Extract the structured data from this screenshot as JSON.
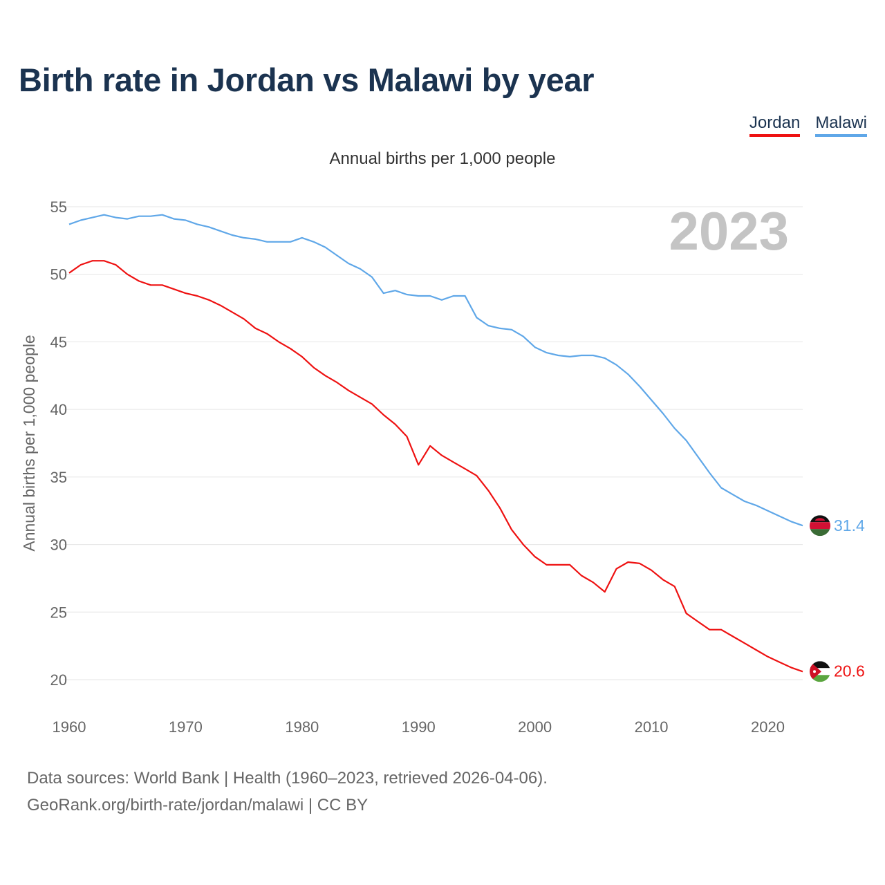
{
  "page": {
    "title": "Birth rate in Jordan vs Malawi by year",
    "subtitle": "Annual births per 1,000 people",
    "footer_line1": "Data sources: World Bank | Health (1960–2023, retrieved 2026-04-06).",
    "footer_line2": "GeoRank.org/birth-rate/jordan/malawi | CC BY"
  },
  "legend": {
    "jordan": "Jordan",
    "malawi": "Malawi"
  },
  "colors": {
    "jordan": "#ee1111",
    "malawi": "#5fa7e8",
    "grid": "#e6e6e6",
    "title": "#1b3350"
  },
  "chart_data": {
    "type": "line",
    "title": "Birth rate in Jordan vs Malawi by year",
    "subtitle": "Annual births per 1,000 people",
    "xlabel": "",
    "ylabel": "Annual births per 1,000 people",
    "year_label": "2023",
    "xlim": [
      1960,
      2023
    ],
    "ylim": [
      20,
      55
    ],
    "x_ticks": [
      1960,
      1970,
      1980,
      1990,
      2000,
      2010,
      2020
    ],
    "y_ticks": [
      20,
      25,
      30,
      35,
      40,
      45,
      50,
      55
    ],
    "grid": true,
    "legend_position": "top-right",
    "x": [
      1960,
      1961,
      1962,
      1963,
      1964,
      1965,
      1966,
      1967,
      1968,
      1969,
      1970,
      1971,
      1972,
      1973,
      1974,
      1975,
      1976,
      1977,
      1978,
      1979,
      1980,
      1981,
      1982,
      1983,
      1984,
      1985,
      1986,
      1987,
      1988,
      1989,
      1990,
      1991,
      1992,
      1993,
      1994,
      1995,
      1996,
      1997,
      1998,
      1999,
      2000,
      2001,
      2002,
      2003,
      2004,
      2005,
      2006,
      2007,
      2008,
      2009,
      2010,
      2011,
      2012,
      2013,
      2014,
      2015,
      2016,
      2017,
      2018,
      2019,
      2020,
      2021,
      2022,
      2023
    ],
    "series": [
      {
        "name": "Jordan",
        "end_label": "20.6",
        "values": [
          50.1,
          50.7,
          51.0,
          51.0,
          50.7,
          50.0,
          49.5,
          49.2,
          49.2,
          48.9,
          48.6,
          48.4,
          48.1,
          47.7,
          47.2,
          46.7,
          46.0,
          45.6,
          45.0,
          44.5,
          43.9,
          43.1,
          42.5,
          42.0,
          41.4,
          40.9,
          40.4,
          39.6,
          38.9,
          38.0,
          35.9,
          37.3,
          36.6,
          36.1,
          35.6,
          35.1,
          34.0,
          32.7,
          31.1,
          30.0,
          29.1,
          28.5,
          28.5,
          28.5,
          27.7,
          27.2,
          26.5,
          28.2,
          28.7,
          28.6,
          28.1,
          27.4,
          26.9,
          24.9,
          24.3,
          23.7,
          23.7,
          23.2,
          22.7,
          22.2,
          21.7,
          21.3,
          20.9,
          20.6
        ]
      },
      {
        "name": "Malawi",
        "end_label": "31.4",
        "values": [
          53.7,
          54.0,
          54.2,
          54.4,
          54.2,
          54.1,
          54.3,
          54.3,
          54.4,
          54.1,
          54.0,
          53.7,
          53.5,
          53.2,
          52.9,
          52.7,
          52.6,
          52.4,
          52.4,
          52.4,
          52.7,
          52.4,
          52.0,
          51.4,
          50.8,
          50.4,
          49.8,
          48.6,
          48.8,
          48.5,
          48.4,
          48.4,
          48.1,
          48.4,
          48.4,
          46.8,
          46.2,
          46.0,
          45.9,
          45.4,
          44.6,
          44.2,
          44.0,
          43.9,
          44.0,
          44.0,
          43.8,
          43.3,
          42.6,
          41.7,
          40.7,
          39.7,
          38.6,
          37.7,
          36.5,
          35.3,
          34.2,
          33.7,
          33.2,
          32.9,
          32.5,
          32.1,
          31.7,
          31.4
        ]
      }
    ]
  }
}
